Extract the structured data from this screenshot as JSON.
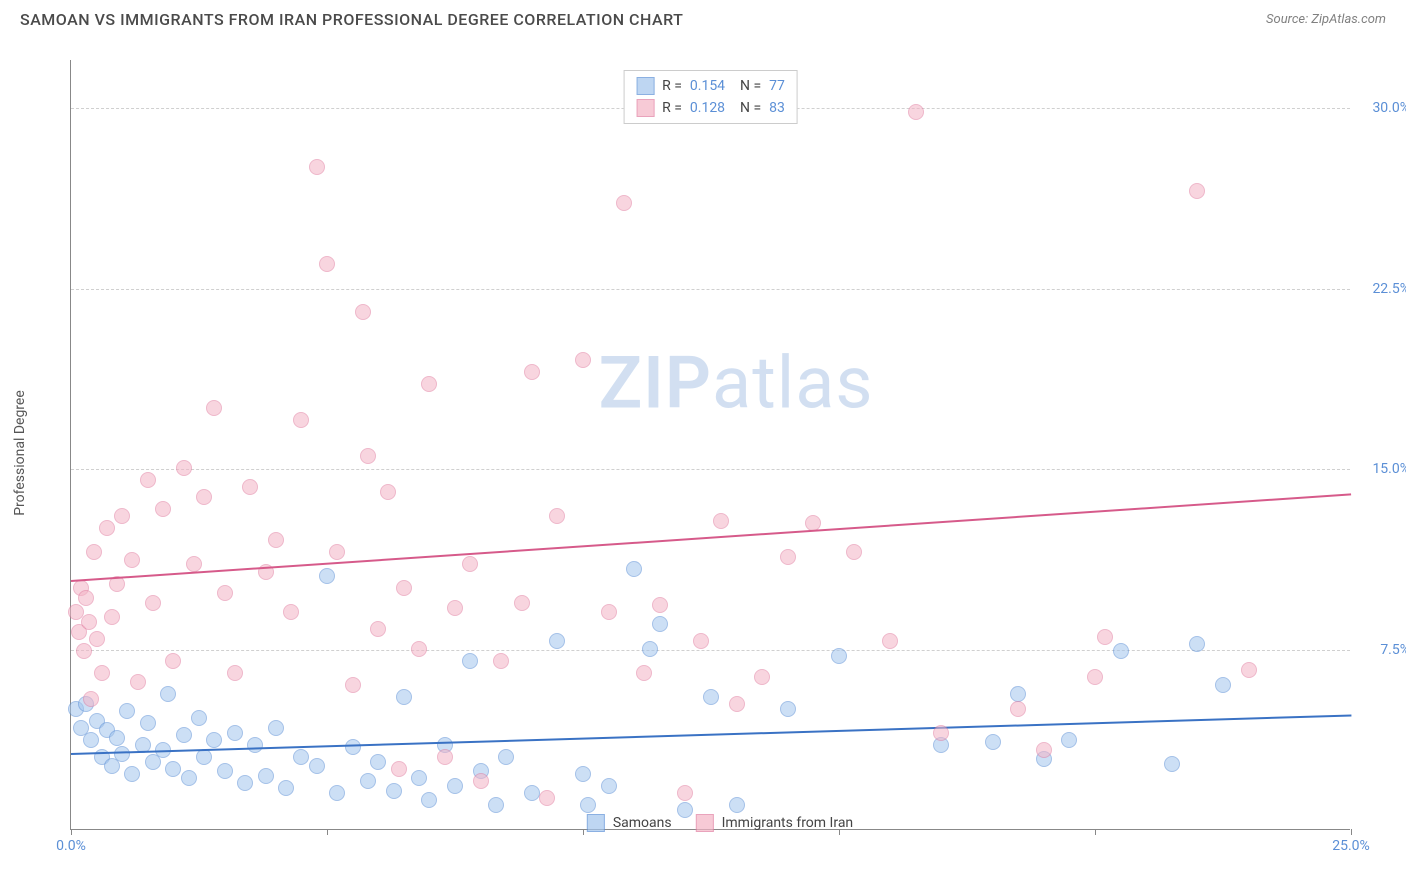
{
  "header": {
    "title": "SAMOAN VS IMMIGRANTS FROM IRAN PROFESSIONAL DEGREE CORRELATION CHART",
    "source": "Source: ZipAtlas.com"
  },
  "chart": {
    "type": "scatter",
    "ylabel": "Professional Degree",
    "watermark": "ZIPatlas",
    "background_color": "#ffffff",
    "grid_color": "#d0d0d0",
    "axis_color": "#888888",
    "tick_label_color": "#5b8fd6",
    "xlim": [
      0,
      25
    ],
    "ylim": [
      0,
      32
    ],
    "x_ticks": [
      0,
      5,
      10,
      15,
      20,
      25
    ],
    "x_tick_labels": [
      "0.0%",
      "",
      "",
      "",
      "",
      "25.0%"
    ],
    "y_gridlines": [
      7.5,
      15.0,
      22.5,
      30.0
    ],
    "y_tick_labels": [
      "7.5%",
      "15.0%",
      "22.5%",
      "30.0%"
    ],
    "series": [
      {
        "name": "Samoans",
        "fill_color": "#a3c5ed",
        "stroke_color": "#5b8fd6",
        "fill_opacity": 0.55,
        "marker_radius": 8,
        "trend": {
          "y_start": 3.2,
          "y_end": 4.8,
          "color": "#3a72c4",
          "width": 2
        },
        "R": "0.154",
        "N": "77",
        "points": [
          [
            0.1,
            5.0
          ],
          [
            0.2,
            4.2
          ],
          [
            0.3,
            5.2
          ],
          [
            0.4,
            3.7
          ],
          [
            0.5,
            4.5
          ],
          [
            0.6,
            3.0
          ],
          [
            0.7,
            4.1
          ],
          [
            0.8,
            2.6
          ],
          [
            0.9,
            3.8
          ],
          [
            1.0,
            3.1
          ],
          [
            1.1,
            4.9
          ],
          [
            1.2,
            2.3
          ],
          [
            1.4,
            3.5
          ],
          [
            1.5,
            4.4
          ],
          [
            1.6,
            2.8
          ],
          [
            1.8,
            3.3
          ],
          [
            1.9,
            5.6
          ],
          [
            2.0,
            2.5
          ],
          [
            2.2,
            3.9
          ],
          [
            2.3,
            2.1
          ],
          [
            2.5,
            4.6
          ],
          [
            2.6,
            3.0
          ],
          [
            2.8,
            3.7
          ],
          [
            3.0,
            2.4
          ],
          [
            3.2,
            4.0
          ],
          [
            3.4,
            1.9
          ],
          [
            3.6,
            3.5
          ],
          [
            3.8,
            2.2
          ],
          [
            4.0,
            4.2
          ],
          [
            4.2,
            1.7
          ],
          [
            4.5,
            3.0
          ],
          [
            4.8,
            2.6
          ],
          [
            5.0,
            10.5
          ],
          [
            5.2,
            1.5
          ],
          [
            5.5,
            3.4
          ],
          [
            5.8,
            2.0
          ],
          [
            6.0,
            2.8
          ],
          [
            6.3,
            1.6
          ],
          [
            6.5,
            5.5
          ],
          [
            6.8,
            2.1
          ],
          [
            7.0,
            1.2
          ],
          [
            7.3,
            3.5
          ],
          [
            7.5,
            1.8
          ],
          [
            7.8,
            7.0
          ],
          [
            8.0,
            2.4
          ],
          [
            8.3,
            1.0
          ],
          [
            8.5,
            3.0
          ],
          [
            9.0,
            1.5
          ],
          [
            9.5,
            7.8
          ],
          [
            10.0,
            2.3
          ],
          [
            10.1,
            1.0
          ],
          [
            10.5,
            1.8
          ],
          [
            11.0,
            10.8
          ],
          [
            11.3,
            7.5
          ],
          [
            11.5,
            8.5
          ],
          [
            12.0,
            0.8
          ],
          [
            12.5,
            5.5
          ],
          [
            13.0,
            1.0
          ],
          [
            14.0,
            5.0
          ],
          [
            15.0,
            7.2
          ],
          [
            17.0,
            3.5
          ],
          [
            18.0,
            3.6
          ],
          [
            18.5,
            5.6
          ],
          [
            19.0,
            2.9
          ],
          [
            19.5,
            3.7
          ],
          [
            20.5,
            7.4
          ],
          [
            21.5,
            2.7
          ],
          [
            22.0,
            7.7
          ],
          [
            22.5,
            6.0
          ]
        ]
      },
      {
        "name": "Immigrants from Iran",
        "fill_color": "#f4b4c6",
        "stroke_color": "#e17da0",
        "fill_opacity": 0.55,
        "marker_radius": 8,
        "trend": {
          "y_start": 10.4,
          "y_end": 14.0,
          "color": "#d65a8a",
          "width": 2
        },
        "R": "0.128",
        "N": "83",
        "points": [
          [
            0.1,
            9.0
          ],
          [
            0.15,
            8.2
          ],
          [
            0.2,
            10.0
          ],
          [
            0.25,
            7.4
          ],
          [
            0.3,
            9.6
          ],
          [
            0.35,
            8.6
          ],
          [
            0.4,
            5.4
          ],
          [
            0.45,
            11.5
          ],
          [
            0.5,
            7.9
          ],
          [
            0.6,
            6.5
          ],
          [
            0.7,
            12.5
          ],
          [
            0.8,
            8.8
          ],
          [
            0.9,
            10.2
          ],
          [
            1.0,
            13.0
          ],
          [
            1.2,
            11.2
          ],
          [
            1.3,
            6.1
          ],
          [
            1.5,
            14.5
          ],
          [
            1.6,
            9.4
          ],
          [
            1.8,
            13.3
          ],
          [
            2.0,
            7.0
          ],
          [
            2.2,
            15.0
          ],
          [
            2.4,
            11.0
          ],
          [
            2.6,
            13.8
          ],
          [
            2.8,
            17.5
          ],
          [
            3.0,
            9.8
          ],
          [
            3.2,
            6.5
          ],
          [
            3.5,
            14.2
          ],
          [
            3.8,
            10.7
          ],
          [
            4.0,
            12.0
          ],
          [
            4.3,
            9.0
          ],
          [
            4.5,
            17.0
          ],
          [
            4.8,
            27.5
          ],
          [
            5.0,
            23.5
          ],
          [
            5.2,
            11.5
          ],
          [
            5.5,
            6.0
          ],
          [
            5.7,
            21.5
          ],
          [
            5.8,
            15.5
          ],
          [
            6.0,
            8.3
          ],
          [
            6.2,
            14.0
          ],
          [
            6.4,
            2.5
          ],
          [
            6.5,
            10.0
          ],
          [
            6.8,
            7.5
          ],
          [
            7.0,
            18.5
          ],
          [
            7.3,
            3.0
          ],
          [
            7.5,
            9.2
          ],
          [
            7.8,
            11.0
          ],
          [
            8.0,
            2.0
          ],
          [
            8.4,
            7.0
          ],
          [
            8.8,
            9.4
          ],
          [
            9.0,
            19.0
          ],
          [
            9.3,
            1.3
          ],
          [
            9.5,
            13.0
          ],
          [
            10.0,
            19.5
          ],
          [
            10.5,
            9.0
          ],
          [
            10.8,
            26.0
          ],
          [
            11.2,
            6.5
          ],
          [
            11.5,
            9.3
          ],
          [
            12.0,
            1.5
          ],
          [
            12.3,
            7.8
          ],
          [
            12.7,
            12.8
          ],
          [
            13.0,
            5.2
          ],
          [
            13.5,
            6.3
          ],
          [
            14.0,
            11.3
          ],
          [
            14.5,
            12.7
          ],
          [
            15.3,
            11.5
          ],
          [
            16.0,
            7.8
          ],
          [
            16.5,
            29.8
          ],
          [
            17.0,
            4.0
          ],
          [
            18.5,
            5.0
          ],
          [
            19.0,
            3.3
          ],
          [
            20.0,
            6.3
          ],
          [
            20.2,
            8.0
          ],
          [
            22.0,
            26.5
          ],
          [
            23.0,
            6.6
          ]
        ]
      }
    ],
    "legend_bottom": [
      {
        "label": "Samoans",
        "fill": "#a3c5ed",
        "stroke": "#5b8fd6"
      },
      {
        "label": "Immigrants from Iran",
        "fill": "#f4b4c6",
        "stroke": "#e17da0"
      }
    ]
  }
}
